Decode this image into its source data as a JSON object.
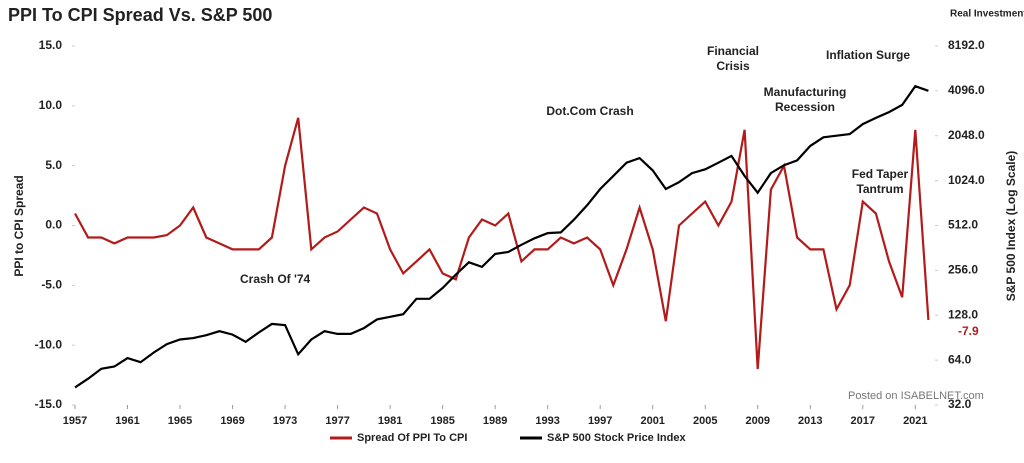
{
  "chart_data": {
    "type": "line",
    "title": "PPI To CPI Spread Vs. S&P 500",
    "ylabel": "PPI to CPI Spread",
    "y2label": "S&P 500 Index (Log Scale)",
    "logo": "Real Investment Advice",
    "watermark": "Posted on ISABELNET.com",
    "x": [
      1957,
      1958,
      1959,
      1960,
      1961,
      1962,
      1963,
      1964,
      1965,
      1966,
      1967,
      1968,
      1969,
      1970,
      1971,
      1972,
      1973,
      1974,
      1975,
      1976,
      1977,
      1978,
      1979,
      1980,
      1981,
      1982,
      1983,
      1984,
      1985,
      1986,
      1987,
      1988,
      1989,
      1990,
      1991,
      1992,
      1993,
      1994,
      1995,
      1996,
      1997,
      1998,
      1999,
      2000,
      2001,
      2002,
      2003,
      2004,
      2005,
      2006,
      2007,
      2008,
      2009,
      2010,
      2011,
      2012,
      2013,
      2014,
      2015,
      2016,
      2017,
      2018,
      2019,
      2020,
      2021,
      2022
    ],
    "series": [
      {
        "name": "Spread Of PPI To CPI",
        "color": "#b31b1b",
        "axis": "y",
        "values": [
          1,
          -1,
          -1,
          -1.5,
          -1,
          -1,
          -1,
          -0.8,
          0,
          1.5,
          -1,
          -1.5,
          -2,
          -2,
          -2,
          -1,
          5,
          9,
          -2,
          -1,
          -0.5,
          0.5,
          1.5,
          1,
          -2,
          -4,
          -3,
          -2,
          -4,
          -4.5,
          -1,
          0.5,
          0,
          1,
          -3,
          -2,
          -2,
          -1,
          -1.5,
          -1,
          -2,
          -5,
          -2,
          1.5,
          -2,
          -8,
          0,
          1,
          2,
          0,
          2,
          8,
          -12,
          3,
          5,
          -1,
          -2,
          -2,
          -7,
          -5,
          2,
          1,
          -3,
          -6,
          8,
          -7.9
        ]
      },
      {
        "name": "S&P 500 Stock Price Index",
        "color": "#000000",
        "axis": "y2",
        "values": [
          42,
          48,
          56,
          58,
          66,
          62,
          72,
          82,
          88,
          90,
          94,
          100,
          95,
          85,
          98,
          112,
          110,
          70,
          88,
          100,
          96,
          96,
          105,
          120,
          125,
          130,
          165,
          165,
          195,
          240,
          290,
          270,
          330,
          340,
          380,
          420,
          455,
          460,
          560,
          700,
          900,
          1100,
          1350,
          1450,
          1200,
          900,
          1000,
          1150,
          1220,
          1350,
          1500,
          1100,
          850,
          1150,
          1300,
          1400,
          1750,
          2000,
          2050,
          2100,
          2450,
          2700,
          2950,
          3300,
          4400,
          4100
        ]
      }
    ],
    "annotations": [
      "Crash Of '74",
      "Dot.Com Crash",
      "Financial Crisis",
      "Manufacturing Recession",
      "Inflation Surge",
      "Fed Taper Tantrum"
    ],
    "xlim": [
      1957,
      2022.5
    ],
    "xticks": [
      1957,
      1961,
      1965,
      1969,
      1973,
      1977,
      1981,
      1985,
      1989,
      1993,
      1997,
      2001,
      2005,
      2009,
      2013,
      2017,
      2021
    ],
    "ylim": [
      -15,
      15
    ],
    "yticks": [
      {
        "value": -15,
        "label": "-15.0"
      },
      {
        "value": -10,
        "label": "-10.0"
      },
      {
        "value": -5,
        "label": "-5.0"
      },
      {
        "value": 0,
        "label": "0.0"
      },
      {
        "value": 5,
        "label": "5.0"
      },
      {
        "value": 10,
        "label": "10.0"
      },
      {
        "value": 15,
        "label": "15.0"
      }
    ],
    "y2lim": [
      32,
      8192
    ],
    "y2log": true,
    "y2ticks": [
      {
        "value": 32,
        "label": "32.0"
      },
      {
        "value": 64,
        "label": "64.0"
      },
      {
        "value": 128,
        "label": "128.0"
      },
      {
        "value": 256,
        "label": "256.0"
      },
      {
        "value": 512,
        "label": "512.0"
      },
      {
        "value": 1024,
        "label": "1024.0"
      },
      {
        "value": 2048,
        "label": "2048.0"
      },
      {
        "value": 4096,
        "label": "4096.0"
      },
      {
        "value": 8192,
        "label": "8192.0"
      }
    ],
    "legend": "bottom"
  }
}
